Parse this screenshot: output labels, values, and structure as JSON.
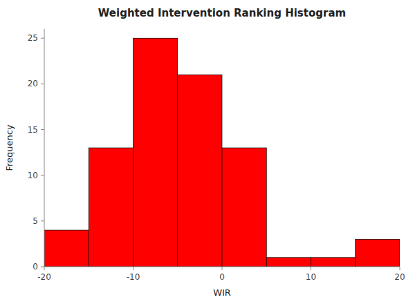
{
  "chart_data": {
    "type": "histogram",
    "title": "Weighted Intervention Ranking Histogram",
    "xlabel": "WIR",
    "ylabel": "Frequency",
    "bins": [
      -20,
      -15,
      -10,
      -5,
      0,
      5,
      10,
      15,
      20
    ],
    "values": [
      4,
      13,
      25,
      21,
      13,
      1,
      1,
      3
    ],
    "color": "#FF0000",
    "xlim": [
      -20,
      20
    ],
    "ylim": [
      0,
      26
    ],
    "xticks": [
      -20,
      -10,
      0,
      10,
      20
    ],
    "yticks": [
      0,
      5,
      10,
      15,
      20,
      25
    ],
    "grid": false
  }
}
